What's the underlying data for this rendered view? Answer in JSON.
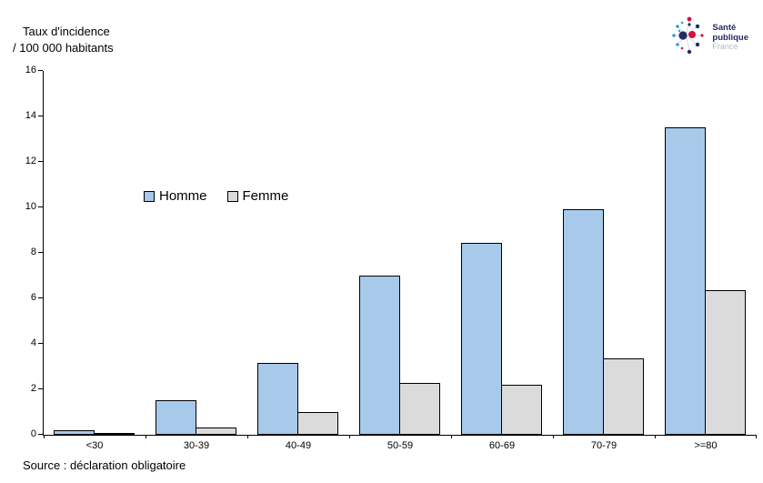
{
  "title": {
    "line1": "Taux d'incidence",
    "line2": "/ 100 000 habitants"
  },
  "source": "Source : déclaration obligatoire",
  "logo": {
    "line1": "Santé",
    "line2": "publique",
    "line3": "France"
  },
  "chart_data": {
    "type": "bar",
    "title": "Taux d'incidence / 100 000 habitants",
    "categories": [
      "<30",
      "30-39",
      "40-49",
      "50-59",
      "60-69",
      "70-79",
      ">=80"
    ],
    "series": [
      {
        "name": "Homme",
        "color": "#a7c9ea",
        "values": [
          0.2,
          1.5,
          3.15,
          7.0,
          8.45,
          9.9,
          13.5
        ]
      },
      {
        "name": "Femme",
        "color": "#dbdbdb",
        "values": [
          0.05,
          0.3,
          1.0,
          2.3,
          2.2,
          3.35,
          6.35
        ]
      }
    ],
    "xlabel": "",
    "ylabel": "Taux d'incidence / 100 000 habitants",
    "ylim": [
      0,
      16
    ],
    "ytick_step": 2,
    "grid": false,
    "legend_position": "inside-upper-left",
    "bar_border_color": "#000000",
    "axis_color": "#000000"
  }
}
